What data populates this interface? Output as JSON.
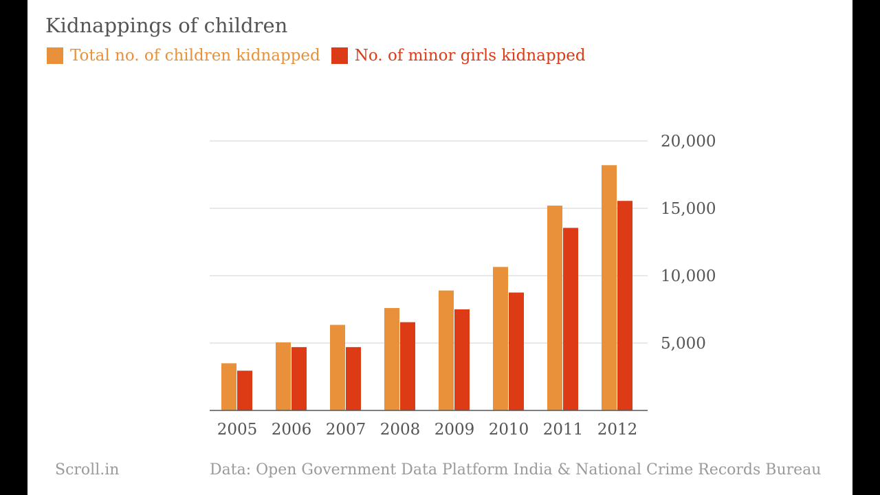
{
  "chart_data": {
    "type": "bar",
    "title": "Kidnappings of children",
    "categories": [
      "2005",
      "2006",
      "2007",
      "2008",
      "2009",
      "2010",
      "2011",
      "2012"
    ],
    "series": [
      {
        "name": "Total no. of children kidnapped",
        "color": "#E8913A",
        "values": [
          3500,
          5050,
          6350,
          7600,
          8900,
          10650,
          15200,
          18200
        ]
      },
      {
        "name": "No. of minor girls kidnapped",
        "color": "#DC3B15",
        "values": [
          2950,
          4700,
          4700,
          6550,
          7500,
          8750,
          13550,
          15550
        ]
      }
    ],
    "yticks": [
      5000,
      10000,
      15000,
      20000
    ],
    "ytick_labels": [
      "5,000",
      "10,000",
      "15,000",
      "20,000"
    ],
    "ylim": [
      0,
      20000
    ],
    "xlabel": "",
    "ylabel": "",
    "grid": true,
    "y_axis_side": "right",
    "legend_position": "top-left"
  },
  "footer": {
    "source_name": "Scroll.in",
    "data_credit": "Data: Open Government Data Platform India & National Crime Records Bureau"
  }
}
